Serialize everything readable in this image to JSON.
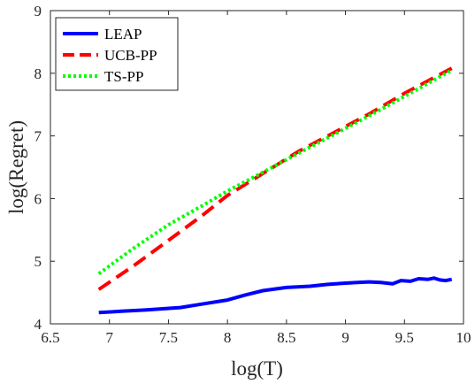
{
  "chart_data": {
    "type": "line",
    "title": "",
    "xlabel": "log(T)",
    "ylabel": "log(Regret)",
    "xlim": [
      6.5,
      10
    ],
    "ylim": [
      4,
      9
    ],
    "xticks": [
      6.5,
      7,
      7.5,
      8,
      8.5,
      9,
      9.5,
      10
    ],
    "xtick_labels": [
      "6.5",
      "7",
      "7.5",
      "8",
      "8.5",
      "9",
      "9.5",
      "10"
    ],
    "yticks": [
      4,
      5,
      6,
      7,
      8,
      9
    ],
    "ytick_labels": [
      "4",
      "5",
      "6",
      "7",
      "8",
      "9"
    ],
    "grid": false,
    "legend_position": "top-left",
    "series": [
      {
        "name": "LEAP",
        "color": "#0000ff",
        "style": "solid",
        "x": [
          6.91,
          7.1,
          7.3,
          7.6,
          7.8,
          8.0,
          8.15,
          8.3,
          8.5,
          8.7,
          8.85,
          9.0,
          9.1,
          9.2,
          9.3,
          9.4,
          9.47,
          9.55,
          9.62,
          9.7,
          9.75,
          9.8,
          9.85,
          9.9
        ],
        "y": [
          4.18,
          4.2,
          4.22,
          4.26,
          4.32,
          4.38,
          4.46,
          4.53,
          4.58,
          4.6,
          4.63,
          4.65,
          4.66,
          4.67,
          4.66,
          4.64,
          4.69,
          4.68,
          4.72,
          4.71,
          4.73,
          4.7,
          4.69,
          4.71
        ]
      },
      {
        "name": "UCB-PP",
        "color": "#ff0000",
        "style": "dashed",
        "x": [
          6.91,
          7.2,
          7.5,
          7.8,
          8.0,
          8.3,
          8.6,
          8.9,
          9.2,
          9.5,
          9.9
        ],
        "y": [
          4.55,
          4.92,
          5.33,
          5.75,
          6.05,
          6.4,
          6.75,
          7.05,
          7.35,
          7.68,
          8.08
        ]
      },
      {
        "name": "TS-PP",
        "color": "#00ff00",
        "style": "dotted",
        "x": [
          6.91,
          7.2,
          7.5,
          7.8,
          8.0,
          8.3,
          8.6,
          8.9,
          9.2,
          9.5,
          9.9
        ],
        "y": [
          4.8,
          5.2,
          5.58,
          5.9,
          6.12,
          6.42,
          6.72,
          7.02,
          7.32,
          7.63,
          8.05
        ]
      }
    ]
  }
}
